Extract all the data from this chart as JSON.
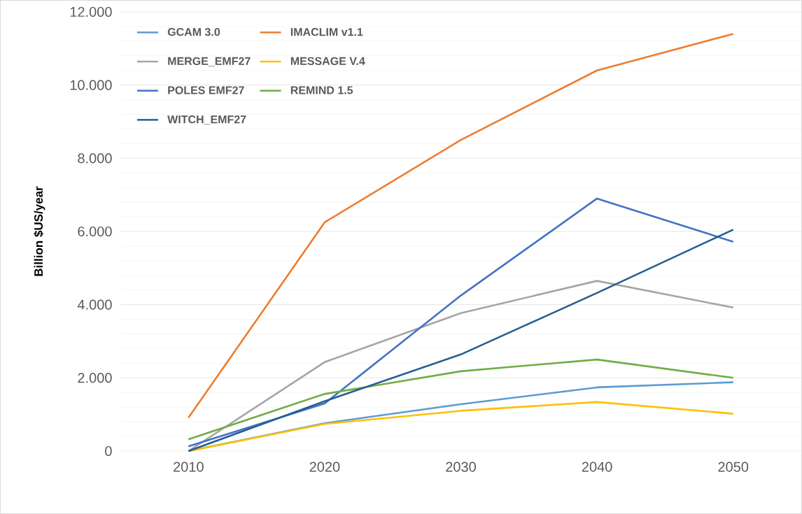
{
  "chart_data": {
    "type": "line",
    "ylabel": "Billion $US/year",
    "categories": [
      "2010",
      "2020",
      "2030",
      "2040",
      "2050"
    ],
    "series": [
      {
        "name": "GCAM 3.0",
        "color": "#5b9bd5",
        "values": [
          0,
          0.76,
          1.28,
          1.74,
          1.88
        ]
      },
      {
        "name": "IMACLIM v1.1",
        "color": "#ed7d31",
        "values": [
          0.91,
          6.25,
          8.5,
          10.4,
          11.4
        ]
      },
      {
        "name": "MERGE_EMF27",
        "color": "#a5a5a5",
        "values": [
          0,
          2.43,
          3.77,
          4.65,
          3.92
        ]
      },
      {
        "name": "MESSAGE V.4",
        "color": "#ffc000",
        "values": [
          0,
          0.74,
          1.1,
          1.34,
          1.02
        ]
      },
      {
        "name": "POLES EMF27",
        "color": "#4472c4",
        "values": [
          0.13,
          1.3,
          4.25,
          6.9,
          5.72
        ]
      },
      {
        "name": "REMIND 1.5",
        "color": "#70ad47",
        "values": [
          0.32,
          1.56,
          2.18,
          2.5,
          2.0
        ]
      },
      {
        "name": "WITCH_EMF27",
        "color": "#255e91",
        "values": [
          0,
          1.36,
          2.64,
          4.32,
          6.05
        ]
      }
    ],
    "ylim": [
      0,
      12
    ],
    "yticks": [
      0,
      {
        "value": 2,
        "label": "2.000"
      },
      {
        "value": 4,
        "label": "4.000"
      },
      {
        "value": 6,
        "label": "6.000"
      },
      {
        "value": 8,
        "label": "8.000"
      },
      {
        "value": 10,
        "label": "10.000"
      },
      {
        "value": 12,
        "label": "12.000"
      }
    ],
    "grid": "y",
    "legend": "top left",
    "marker": "none",
    "line_style": "solid"
  }
}
